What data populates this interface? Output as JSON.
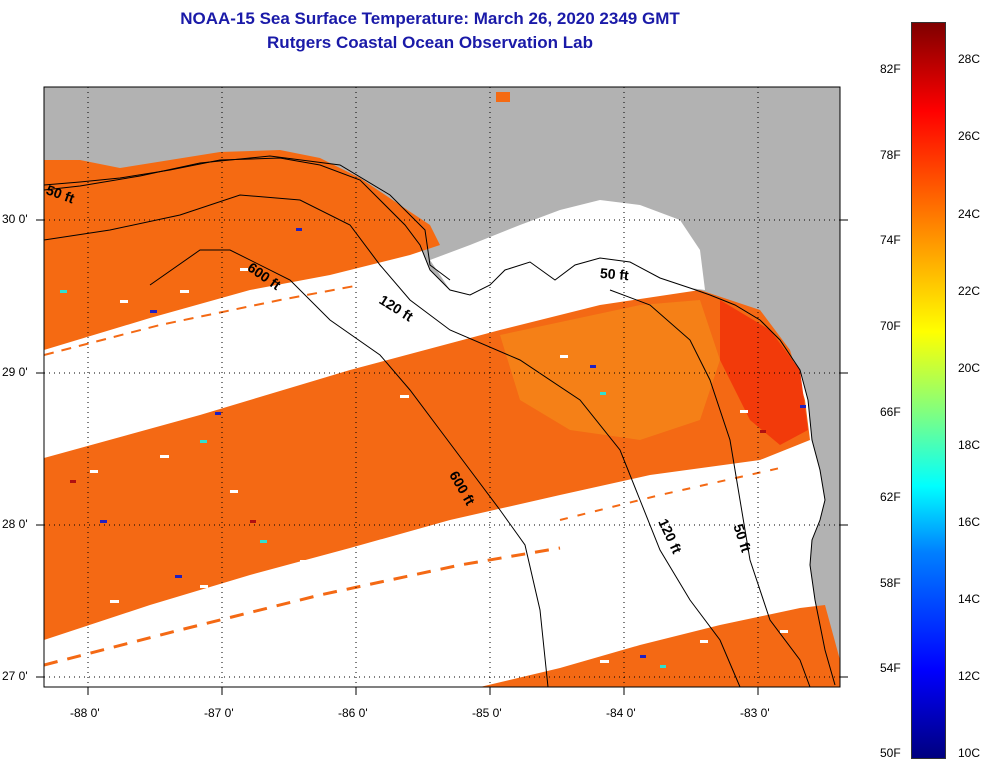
{
  "title": "NOAA-15 Sea Surface Temperature:  March 26, 2020 2349 GMT",
  "subtitle": "Rutgers Coastal Ocean Observation Lab",
  "lat_labels": [
    "30 0'",
    "29 0'",
    "28 0'",
    "27 0'"
  ],
  "lon_labels": [
    "-88 0'",
    "-87 0'",
    "-86 0'",
    "-85 0'",
    "-84 0'",
    "-83 0'"
  ],
  "contour_labels": {
    "c50_west": "50 ft",
    "c600_west": "600 ft",
    "c120_north": "120 ft",
    "c50_east": "50 ft",
    "c600_south": "600 ft",
    "c120_south": "120 ft",
    "c50_south": "50 ft"
  },
  "colorbar": {
    "fahrenheit": [
      "82F",
      "78F",
      "74F",
      "70F",
      "66F",
      "62F",
      "58F",
      "54F",
      "50F"
    ],
    "celsius": [
      "28C",
      "26C",
      "24C",
      "22C",
      "20C",
      "18C",
      "16C",
      "14C",
      "12C",
      "10C"
    ]
  },
  "colors": {
    "land": "#b2b2b2",
    "sst_warm": "#f56a12",
    "title": "#1a1aa8"
  }
}
